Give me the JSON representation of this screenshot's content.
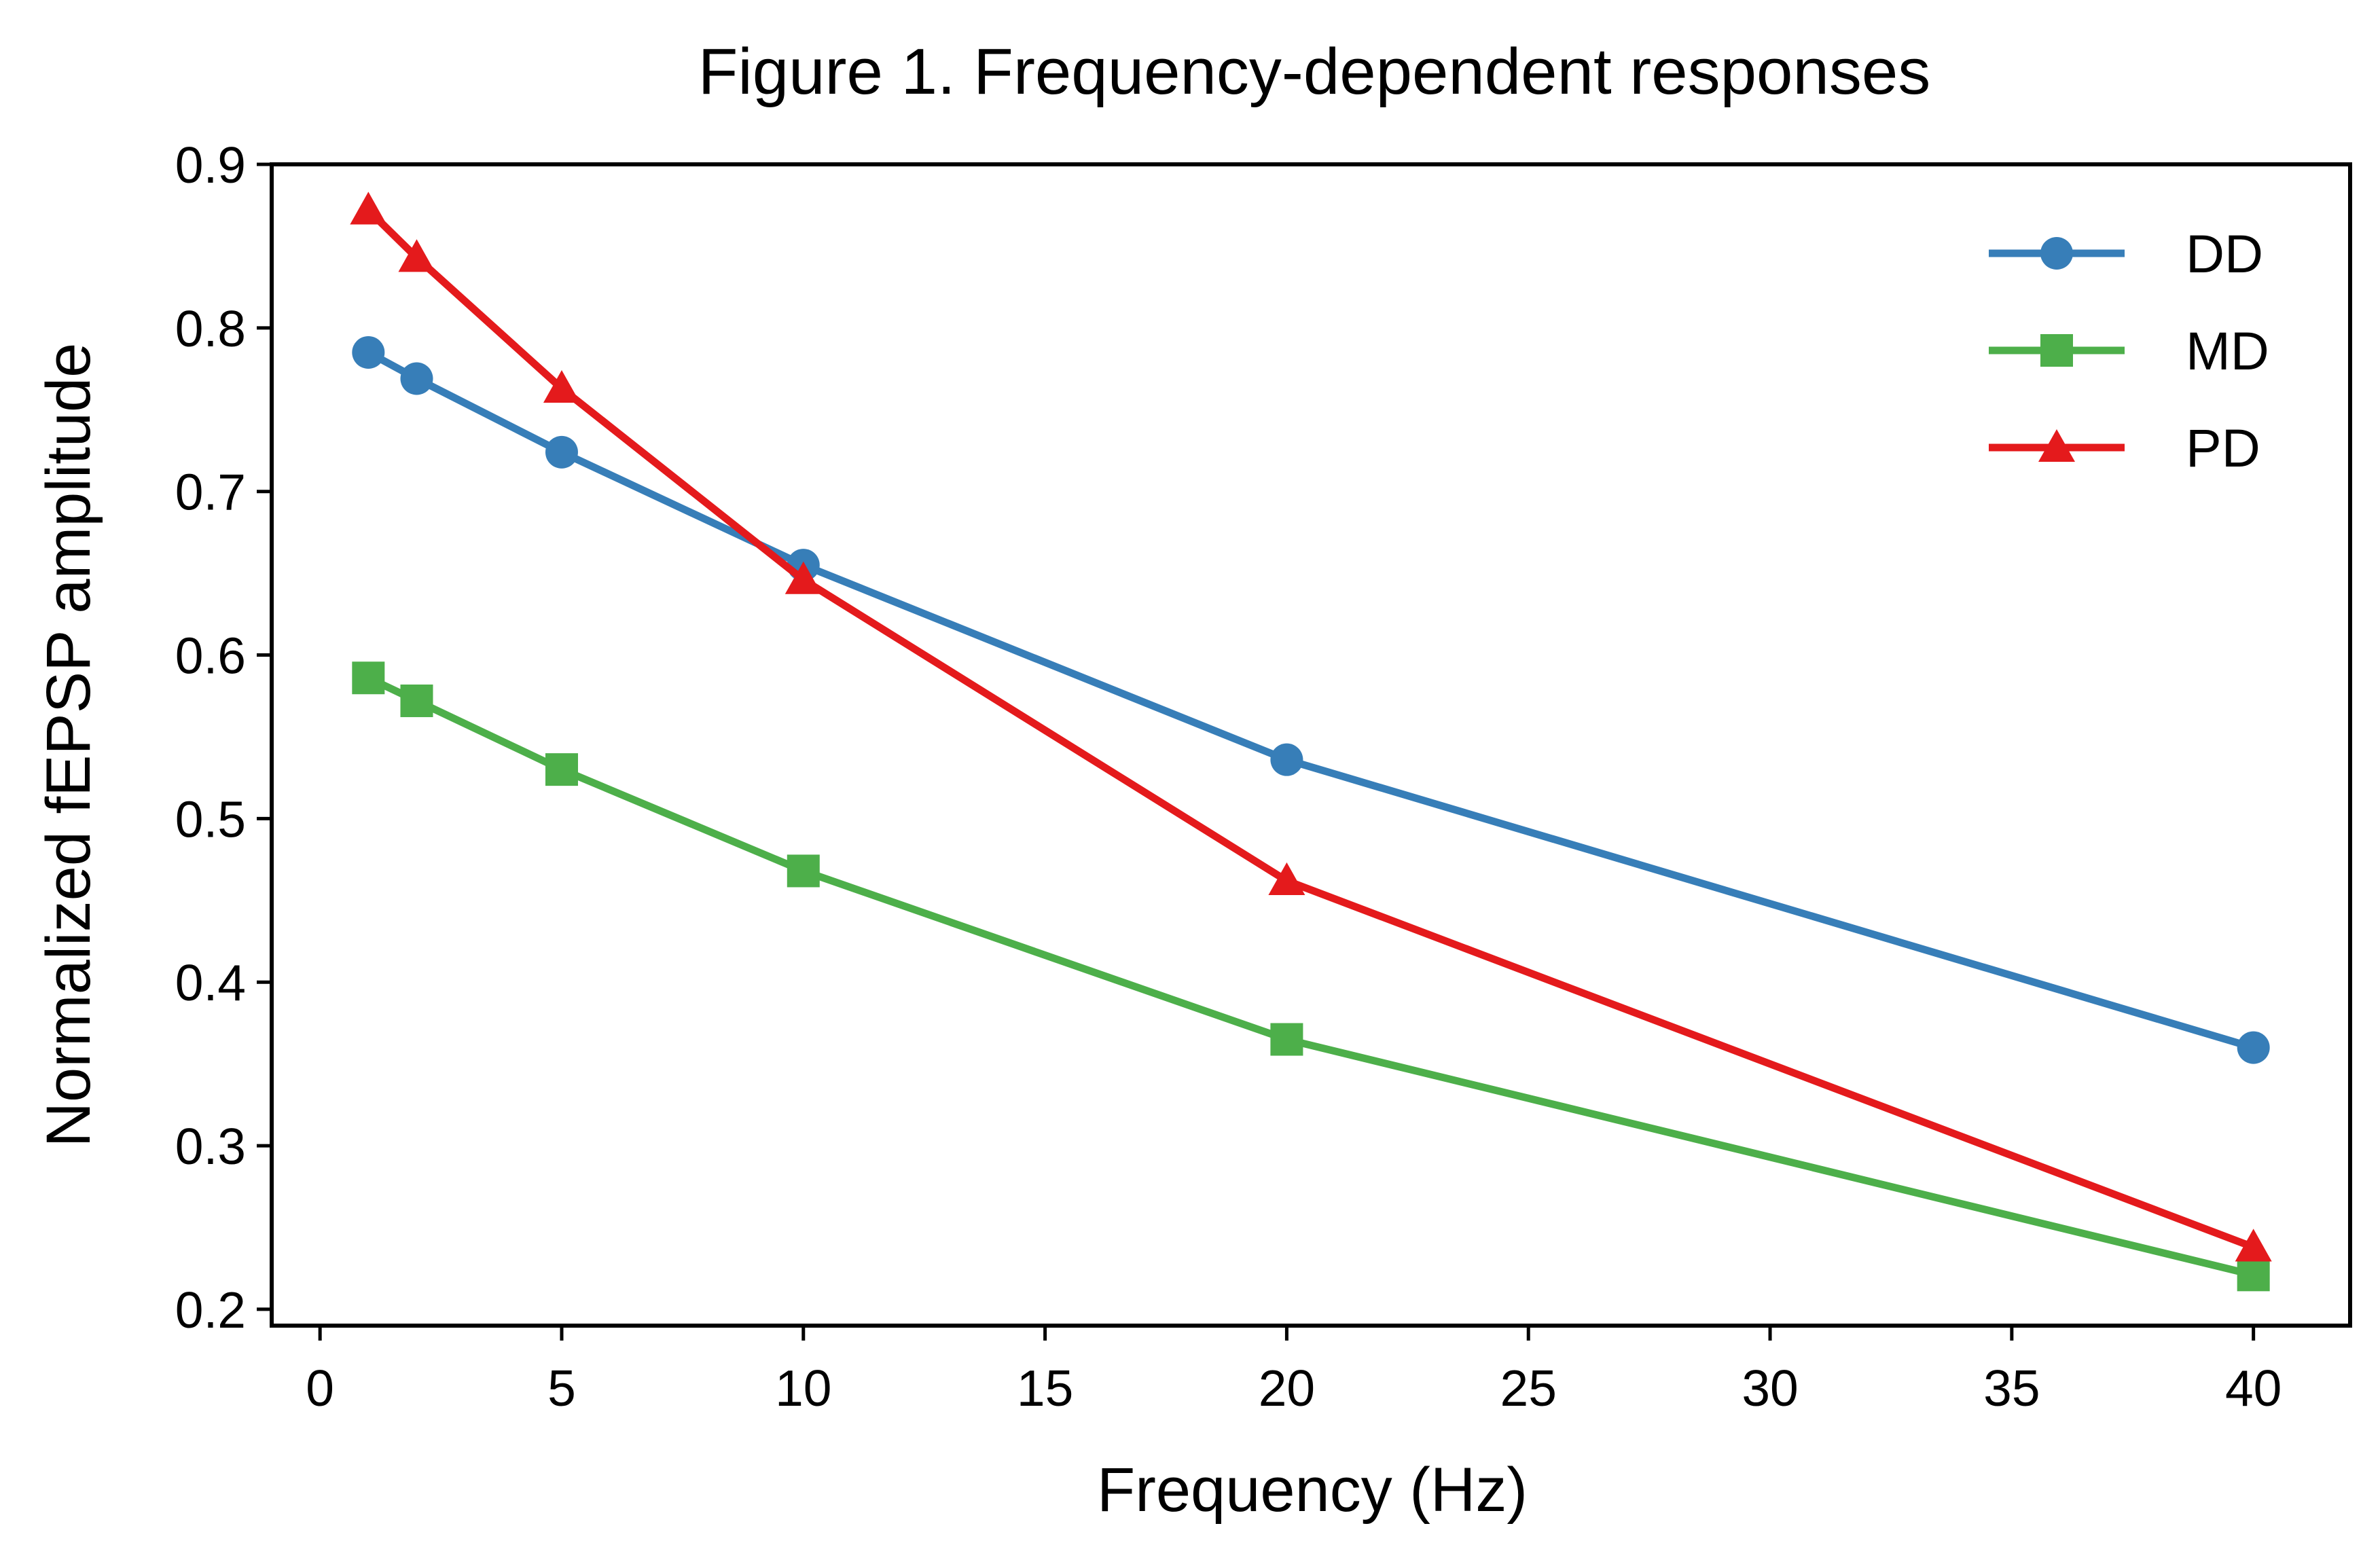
{
  "chart_data": {
    "type": "line",
    "title": "Figure 1. Frequency-dependent responses",
    "xlabel": "Frequency (Hz)",
    "ylabel": "Normalized fEPSP amplitude",
    "xlim": [
      -1,
      42
    ],
    "ylim": [
      0.19,
      0.9
    ],
    "xticks": [
      0,
      5,
      10,
      15,
      20,
      25,
      30,
      35,
      40
    ],
    "yticks": [
      0.2,
      0.3,
      0.4,
      0.5,
      0.6,
      0.7,
      0.8,
      0.9
    ],
    "xtick_labels": [
      "0",
      "5",
      "10",
      "15",
      "20",
      "25",
      "30",
      "35",
      "40"
    ],
    "ytick_labels": [
      "0.2",
      "0.3",
      "0.4",
      "0.5",
      "0.6",
      "0.7",
      "0.8",
      "0.9"
    ],
    "grid": false,
    "legend_position": "top-right",
    "x": [
      1,
      2,
      5,
      10,
      20,
      40
    ],
    "series": [
      {
        "name": "DD",
        "marker": "circle",
        "color": "#377eb8",
        "values": [
          0.785,
          0.769,
          0.724,
          0.655,
          0.536,
          0.36
        ]
      },
      {
        "name": "MD",
        "marker": "square",
        "color": "#4daf4a",
        "values": [
          0.586,
          0.572,
          0.53,
          0.468,
          0.365,
          0.221
        ]
      },
      {
        "name": "PD",
        "marker": "triangle",
        "color": "#e41a1c",
        "values": [
          0.872,
          0.843,
          0.763,
          0.646,
          0.462,
          0.238
        ]
      }
    ]
  }
}
